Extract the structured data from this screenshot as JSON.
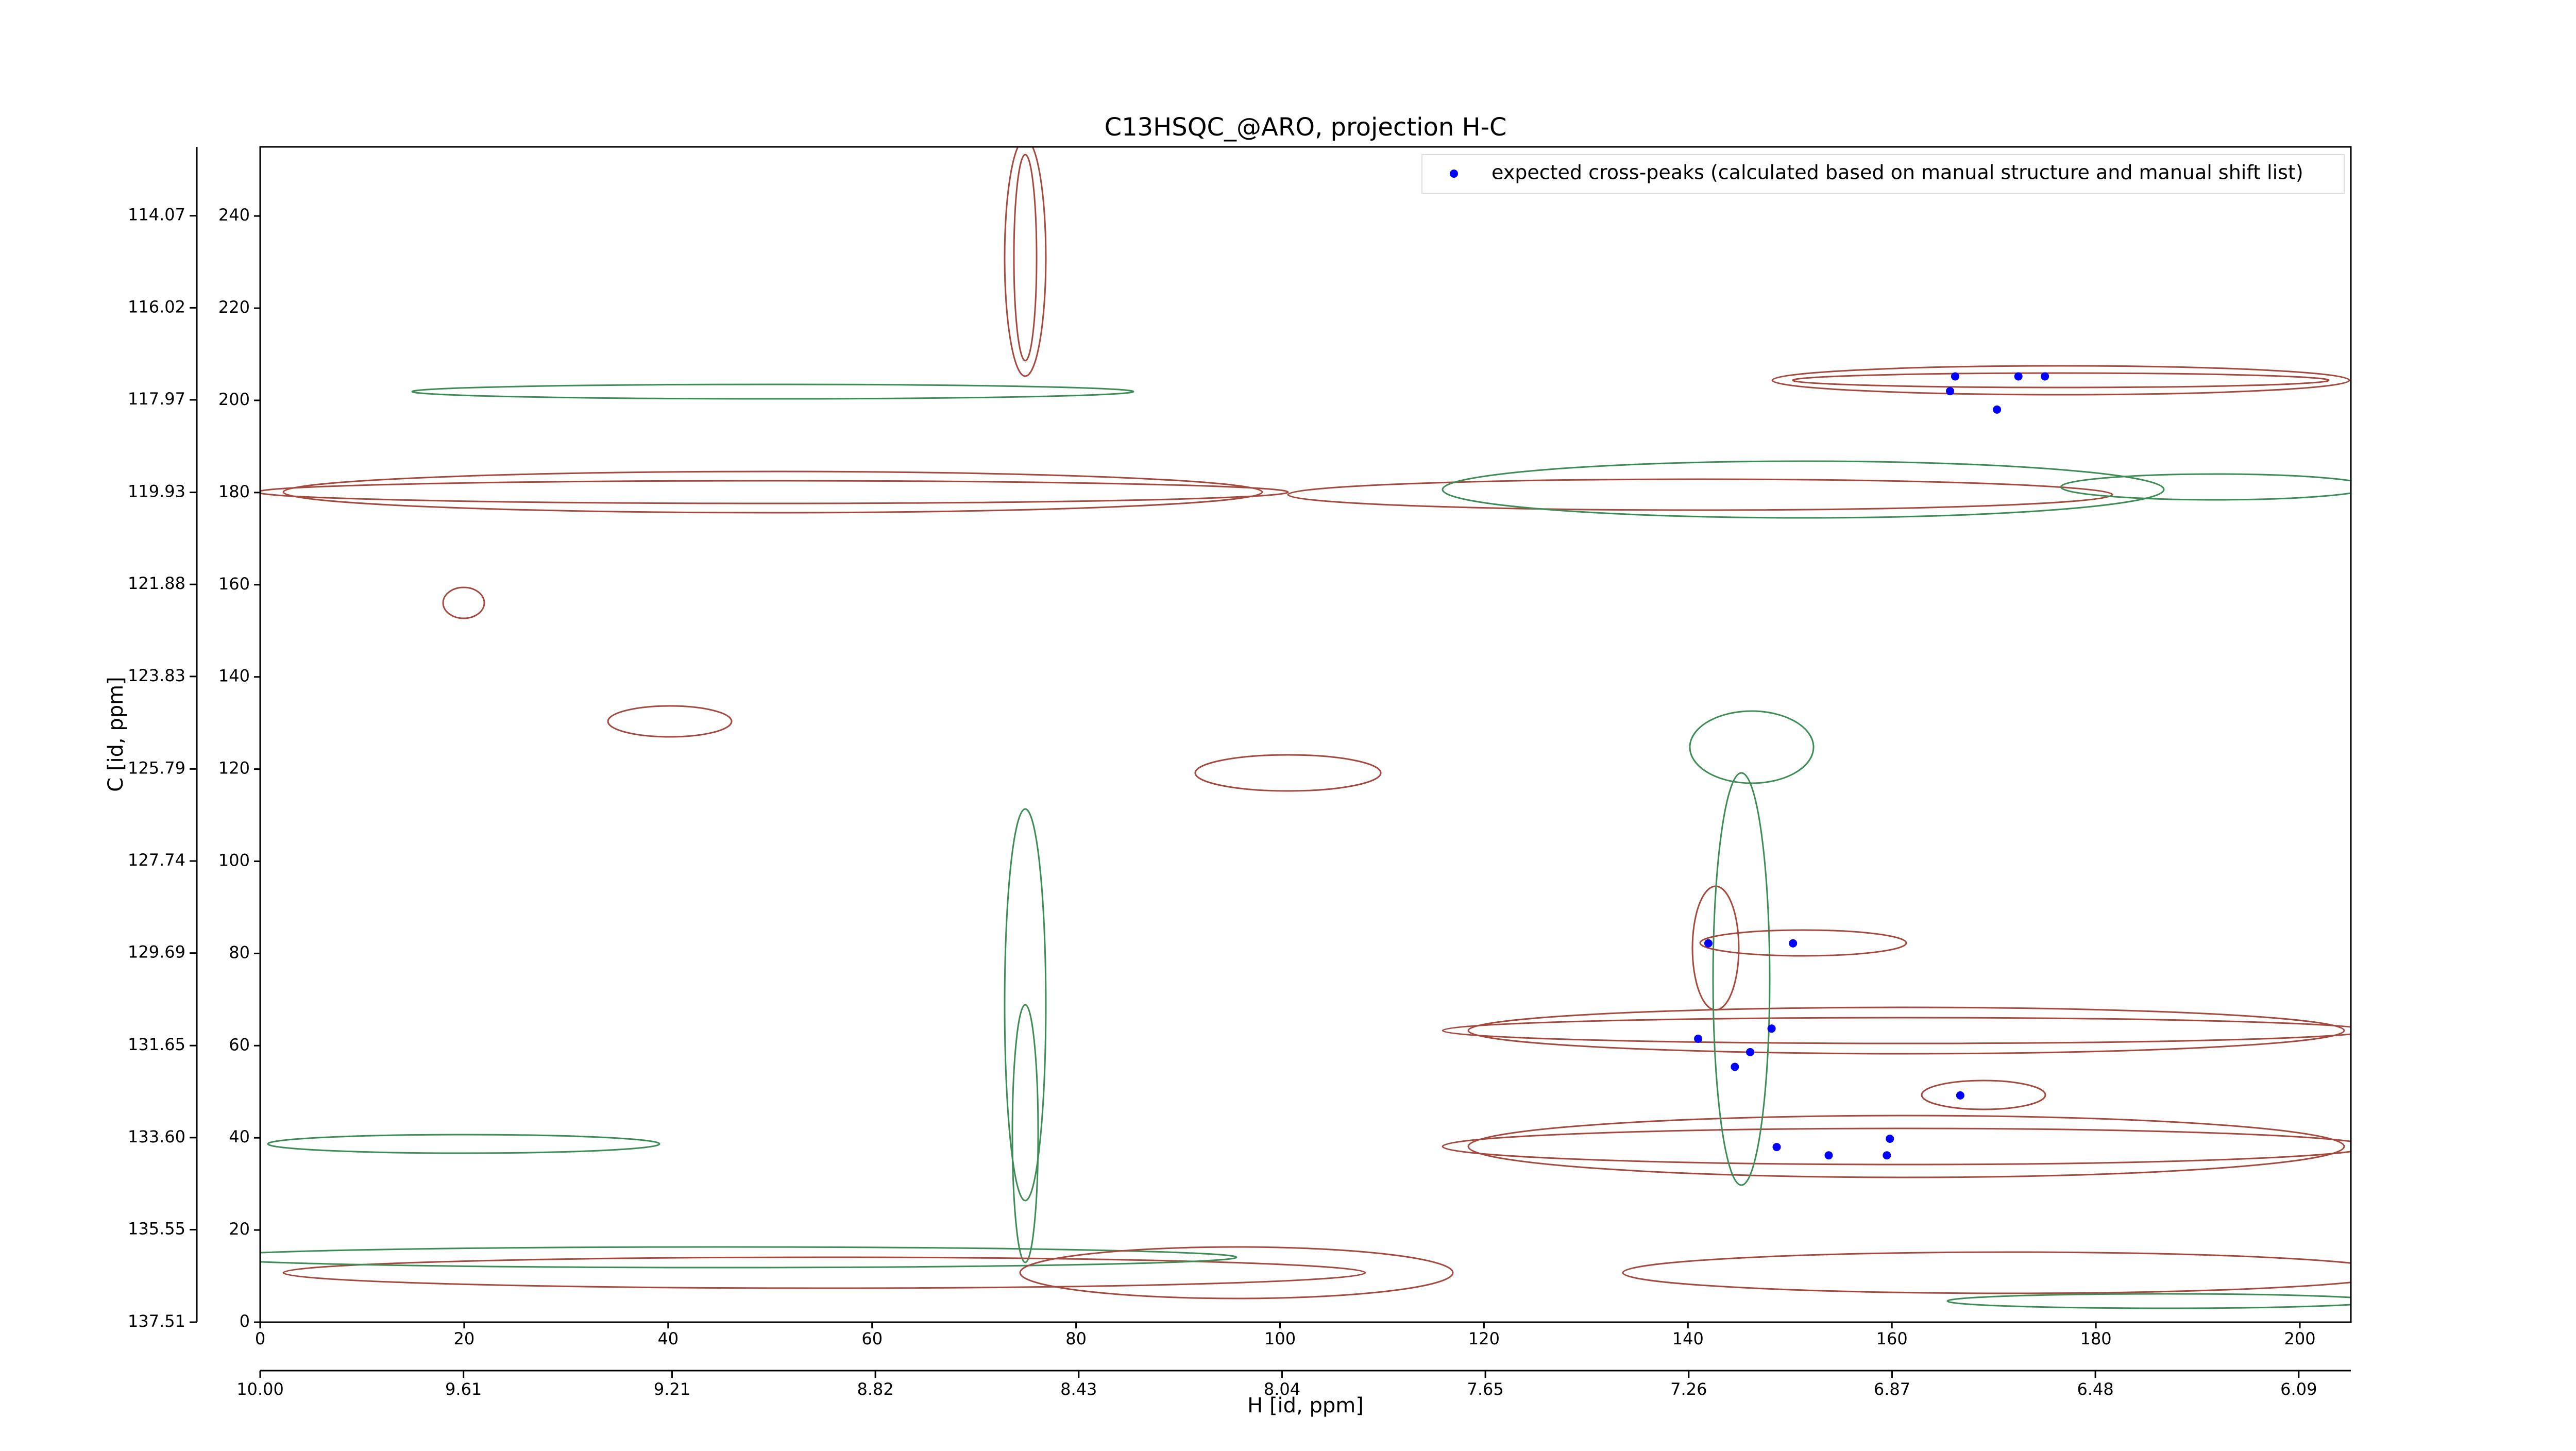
{
  "chart_data": {
    "type": "scatter",
    "title": "C13HSQC_@ARO, projection H-C",
    "xlabel": "H [id, ppm]",
    "ylabel": "C [id, ppm]",
    "xlim": [
      0,
      205
    ],
    "ylim": [
      0,
      255
    ],
    "xticks": [
      0,
      20,
      40,
      60,
      80,
      100,
      120,
      140,
      160,
      180,
      200
    ],
    "yticks": [
      0,
      20,
      40,
      60,
      80,
      100,
      120,
      140,
      160,
      180,
      200,
      220,
      240
    ],
    "x2lim": [
      10.0,
      5.99
    ],
    "x2ticks": [
      {
        "value": 10.0,
        "label": "10.00"
      },
      9.61,
      9.21,
      8.82,
      8.43,
      8.04,
      7.65,
      7.26,
      6.87,
      6.48,
      6.09
    ],
    "y2lim": [
      137.51,
      112.61
    ],
    "y2ticks": [
      114.07,
      116.02,
      117.97,
      119.93,
      121.88,
      123.83,
      125.79,
      127.74,
      129.69,
      131.65,
      {
        "value": 133.6,
        "label": "133.60"
      },
      135.55,
      137.51
    ],
    "grid": false,
    "legend": "upper right",
    "series": [
      {
        "name": "expected cross-peaks (calculated based on manual structure and manual shift list)",
        "color": "#0000ff",
        "x": [
          166.2,
          165.7,
          172.4,
          175.0,
          170.3,
          142.0,
          150.3,
          141.0,
          148.2,
          146.1,
          144.6,
          166.7,
          148.7,
          153.8,
          159.8,
          159.5
        ],
        "y": [
          205.2,
          202.0,
          205.2,
          205.2,
          198.0,
          82.2,
          82.2,
          61.5,
          63.7,
          58.6,
          55.4,
          49.2,
          38.0,
          36.2,
          39.8,
          36.2
        ]
      }
    ]
  }
}
